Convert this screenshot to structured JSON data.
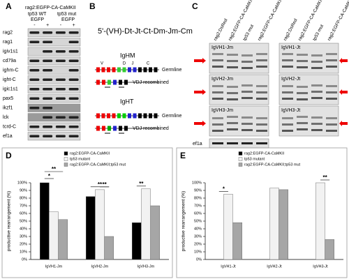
{
  "panel_a": {
    "label": "A",
    "construct": "rag2:EGFP-CA-CaMKII",
    "groups": [
      "tp53 WT",
      "tp53 mut"
    ],
    "reporters": [
      "EGFP",
      "EGFP"
    ],
    "lanes": [
      "-",
      "+",
      "-",
      "+"
    ],
    "genes": [
      "rag2",
      "rag1",
      "igiv1s1",
      "cd79a",
      "ighm-C",
      "ight-C",
      "igic1s1",
      "pax5",
      "ikzf1",
      "lck",
      "tcrd-C",
      "ef1a"
    ]
  },
  "panel_b": {
    "label": "B",
    "locus": "5'-(VH)-Dt-Jt-Ct-Dm-Jm-Cm",
    "segments": [
      "V",
      "D",
      "J",
      "C"
    ],
    "diagrams": [
      {
        "name": "IgHM",
        "germline": "Germline",
        "recombined": "VDJ recombined"
      },
      {
        "name": "IgHT",
        "germline": "Germline",
        "recombined": "VDJ recombined"
      }
    ]
  },
  "panel_c": {
    "label": "C",
    "lanes": [
      "rag2:DsRed",
      "rag2:EGFP-CA-CaMKII",
      "tp53 mut",
      "rag2:EGFP-CA-CaMKII;tp53 mut"
    ],
    "left_rows": [
      "IgVH1-Jm",
      "IgVH2-Jm",
      "IgVH3-Jm"
    ],
    "right_rows": [
      "IgVH1-Jt",
      "IgVH2-Jt",
      "IgVH3-Jt"
    ],
    "loading_control": "ef1a"
  },
  "chart_data": [
    {
      "type": "bar",
      "panel_label": "D",
      "y_label": "productive rearrangement (%)",
      "categories": [
        "IgVH1-Jm",
        "IgVH2-Jm",
        "IgVH3-Jm"
      ],
      "series": [
        {
          "name": "rag2:EGFP-CA-CaMKII",
          "color": "#000000",
          "values": [
            100,
            82,
            48
          ]
        },
        {
          "name": "tp53 mutant",
          "color": "#f2f2f2",
          "values": [
            62,
            91,
            92
          ]
        },
        {
          "name": "rag2:EGFP-CA-CaMKII;tp53 mut",
          "color": "#a6a6a6",
          "values": [
            52,
            30,
            70
          ]
        }
      ],
      "ylim": [
        0,
        100
      ],
      "yticks": [
        {
          "value": 0,
          "label": "0%"
        },
        {
          "value": 10,
          "label": "10%"
        },
        {
          "value": 20,
          "label": "20%"
        },
        {
          "value": 30,
          "label": "30%"
        },
        {
          "value": 40,
          "label": "40%"
        },
        {
          "value": 50,
          "label": "50%"
        },
        {
          "value": 60,
          "label": "60%"
        },
        {
          "value": 70,
          "label": "70%"
        },
        {
          "value": 80,
          "label": "80%"
        },
        {
          "value": 90,
          "label": "90%"
        },
        {
          "value": 100,
          "label": "100%"
        }
      ],
      "annotations": [
        "*",
        "**",
        "**",
        "**",
        "**"
      ]
    },
    {
      "type": "bar",
      "panel_label": "E",
      "y_label": "productive rearrangement (%)",
      "categories": [
        "IgVH1-Jt",
        "IgVH2-Jt",
        "IgVH3-Jt"
      ],
      "series": [
        {
          "name": "rag2:EGFP-CA-CaMKII",
          "color": "#000000",
          "values": [
            0,
            0,
            0
          ]
        },
        {
          "name": "tp53 mutant",
          "color": "#f2f2f2",
          "values": [
            85,
            93,
            100
          ]
        },
        {
          "name": "rag2:EGFP-CA-CaMKII;tp53 mut",
          "color": "#a6a6a6",
          "values": [
            48,
            91,
            26
          ]
        }
      ],
      "ylim": [
        0,
        100
      ],
      "yticks": [
        {
          "value": 0,
          "label": "0%"
        },
        {
          "value": 10,
          "label": "10%"
        },
        {
          "value": 20,
          "label": "20%"
        },
        {
          "value": 30,
          "label": "30%"
        },
        {
          "value": 40,
          "label": "40%"
        },
        {
          "value": 50,
          "label": "50%"
        },
        {
          "value": 60,
          "label": "60%"
        },
        {
          "value": 70,
          "label": "70%"
        },
        {
          "value": 80,
          "label": "80%"
        },
        {
          "value": 90,
          "label": "90%"
        },
        {
          "value": 100,
          "label": "100%"
        }
      ],
      "annotations": [
        "*",
        "**"
      ]
    }
  ]
}
